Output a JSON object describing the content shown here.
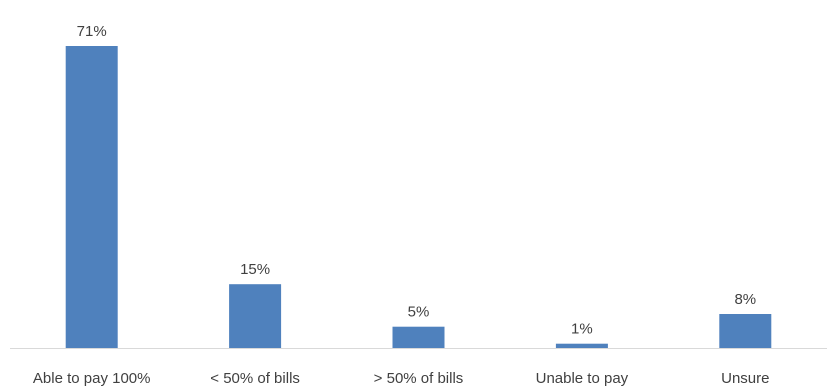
{
  "chart_data": {
    "type": "bar",
    "categories": [
      "Able to pay 100%",
      "< 50% of bills",
      "> 50% of bills",
      "Unable to pay",
      "Unsure"
    ],
    "values": [
      71,
      15,
      5,
      1,
      8
    ],
    "data_labels": [
      "71%",
      "15%",
      "5%",
      "1%",
      "8%"
    ],
    "value_unit": "%",
    "title": "",
    "xlabel": "",
    "ylabel": "",
    "ylim": [
      0,
      71
    ],
    "grid": false,
    "legend": "none",
    "colors": {
      "bar": "#4f81bd",
      "axis": "#d9d9d9",
      "text": "#404040"
    }
  }
}
